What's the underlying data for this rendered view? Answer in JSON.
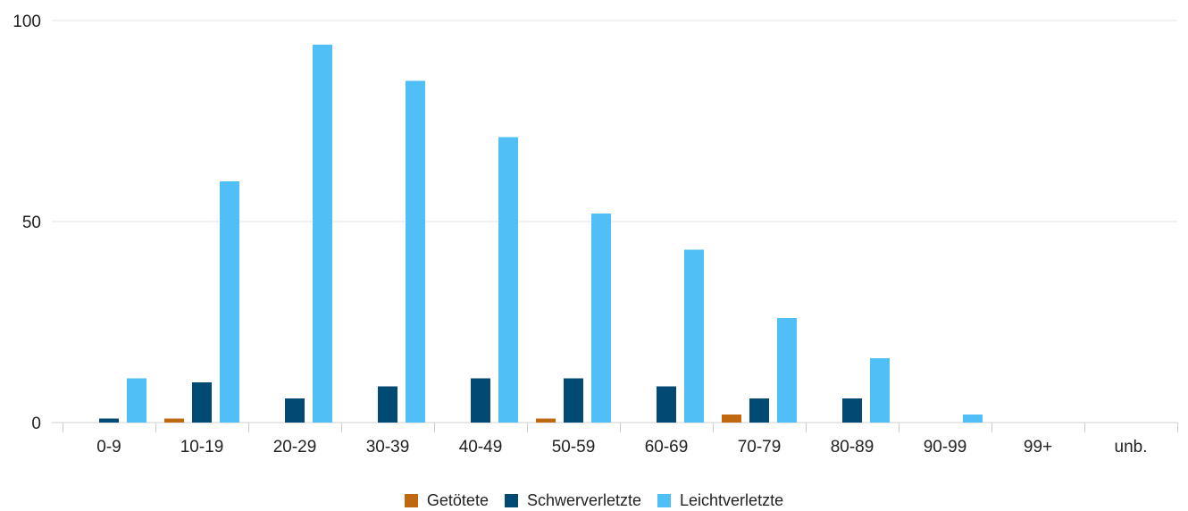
{
  "chart_data": {
    "type": "bar",
    "title": "",
    "xlabel": "",
    "ylabel": "",
    "ylim": [
      0,
      100
    ],
    "yticks": [
      0,
      50,
      100
    ],
    "grid": true,
    "legend_position": "bottom",
    "categories": [
      "0-9",
      "10-19",
      "20-29",
      "30-39",
      "40-49",
      "50-59",
      "60-69",
      "70-79",
      "80-89",
      "90-99",
      "99+",
      "unb."
    ],
    "series": [
      {
        "name": "Getötete",
        "color": "#c0680f",
        "values": [
          0,
          1,
          0,
          0,
          0,
          1,
          0,
          2,
          0,
          0,
          0,
          0
        ]
      },
      {
        "name": "Schwerverletzte",
        "color": "#004a73",
        "values": [
          1,
          10,
          6,
          9,
          11,
          11,
          9,
          6,
          6,
          0,
          0,
          0
        ]
      },
      {
        "name": "Leichtverletzte",
        "color": "#4fbff5",
        "values": [
          11,
          60,
          94,
          85,
          71,
          52,
          43,
          26,
          16,
          2,
          0,
          0
        ]
      }
    ]
  }
}
